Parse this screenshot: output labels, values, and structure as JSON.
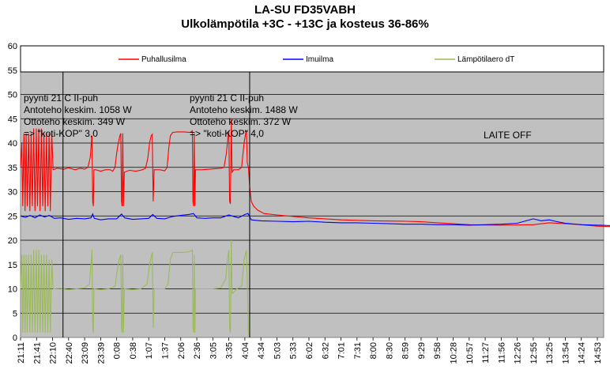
{
  "chart_data": {
    "type": "line",
    "title": "LA-SU FD35VABH",
    "subtitle": "Ulkolämpötila +3C - +13C ja kosteus 36-86%",
    "ylim": [
      0,
      60
    ],
    "yticks": [
      0,
      5,
      10,
      15,
      20,
      25,
      30,
      35,
      40,
      45,
      50,
      55,
      60
    ],
    "grid": true,
    "legend_position": "top",
    "x_labels": [
      "21:11",
      "21:41",
      "22:10",
      "22:40",
      "23:09",
      "23:39",
      "0:08",
      "0:38",
      "1:07",
      "1:37",
      "2:06",
      "2:36",
      "3:05",
      "3:35",
      "4:04",
      "4:34",
      "5:03",
      "5:33",
      "6:02",
      "6:32",
      "7:01",
      "7:31",
      "8:00",
      "8:30",
      "8:59",
      "9:29",
      "9:58",
      "10:28",
      "10:57",
      "11:27",
      "11:56",
      "12:26",
      "12:55",
      "13:25",
      "13:54",
      "14:24",
      "14:53"
    ],
    "series": [
      {
        "name": "Puhallusilma",
        "color": "#ff0000",
        "points": [
          [
            0,
            35
          ],
          [
            0.08,
            40
          ],
          [
            0.14,
            27
          ],
          [
            0.21,
            42
          ],
          [
            0.28,
            26
          ],
          [
            0.35,
            42
          ],
          [
            0.42,
            27
          ],
          [
            0.5,
            42
          ],
          [
            0.58,
            26
          ],
          [
            0.66,
            42
          ],
          [
            0.74,
            27
          ],
          [
            0.82,
            43
          ],
          [
            0.9,
            26
          ],
          [
            0.98,
            43
          ],
          [
            1.06,
            27
          ],
          [
            1.14,
            43
          ],
          [
            1.22,
            26
          ],
          [
            1.3,
            43
          ],
          [
            1.38,
            27
          ],
          [
            1.46,
            42
          ],
          [
            1.54,
            26
          ],
          [
            1.62,
            42
          ],
          [
            1.7,
            27
          ],
          [
            1.78,
            42
          ],
          [
            1.86,
            26
          ],
          [
            1.95,
            42
          ],
          [
            2.03,
            34.5
          ],
          [
            2.3,
            34.8
          ],
          [
            2.7,
            34.6
          ],
          [
            3.0,
            34.9
          ],
          [
            3.4,
            34.5
          ],
          [
            3.75,
            34.8
          ],
          [
            4.0,
            34.6
          ],
          [
            4.2,
            35
          ],
          [
            4.35,
            37
          ],
          [
            4.42,
            40
          ],
          [
            4.46,
            41.5
          ],
          [
            4.5,
            28
          ],
          [
            4.54,
            27
          ],
          [
            4.58,
            34.5
          ],
          [
            4.7,
            34.5
          ],
          [
            5.0,
            34.2
          ],
          [
            5.3,
            34.5
          ],
          [
            5.6,
            34.5
          ],
          [
            5.75,
            34.2
          ],
          [
            5.9,
            35
          ],
          [
            6.0,
            38
          ],
          [
            6.1,
            40
          ],
          [
            6.2,
            41.5
          ],
          [
            6.26,
            42
          ],
          [
            6.3,
            28
          ],
          [
            6.34,
            27
          ],
          [
            6.38,
            42
          ],
          [
            6.42,
            27
          ],
          [
            6.48,
            34
          ],
          [
            6.8,
            34.4
          ],
          [
            7.2,
            34.2
          ],
          [
            7.6,
            34.5
          ],
          [
            7.8,
            34.8
          ],
          [
            7.95,
            37
          ],
          [
            8.05,
            40
          ],
          [
            8.15,
            41.5
          ],
          [
            8.22,
            41.8
          ],
          [
            8.28,
            28
          ],
          [
            8.34,
            34.5
          ],
          [
            8.7,
            34.5
          ],
          [
            9.0,
            34.3
          ],
          [
            9.15,
            35
          ],
          [
            9.25,
            39
          ],
          [
            9.35,
            41.5
          ],
          [
            9.5,
            42.2
          ],
          [
            9.8,
            42.3
          ],
          [
            10.2,
            42.3
          ],
          [
            10.6,
            42.2
          ],
          [
            10.72,
            42.5
          ],
          [
            10.76,
            28
          ],
          [
            10.8,
            27
          ],
          [
            10.84,
            42
          ],
          [
            10.88,
            27
          ],
          [
            10.92,
            34.5
          ],
          [
            11.3,
            34.5
          ],
          [
            11.7,
            34.6
          ],
          [
            12.1,
            34.7
          ],
          [
            12.5,
            34.8
          ],
          [
            12.7,
            35
          ],
          [
            12.85,
            38
          ],
          [
            12.95,
            41.5
          ],
          [
            13.0,
            42.5
          ],
          [
            13.05,
            28
          ],
          [
            13.1,
            27.5
          ],
          [
            13.15,
            45
          ],
          [
            13.2,
            34
          ],
          [
            13.3,
            34.5
          ],
          [
            13.6,
            34.5
          ],
          [
            13.8,
            35
          ],
          [
            13.95,
            40
          ],
          [
            14.05,
            42
          ],
          [
            14.1,
            42.5
          ],
          [
            14.15,
            36
          ],
          [
            14.22,
            35
          ],
          [
            14.3,
            31
          ],
          [
            14.4,
            28
          ],
          [
            14.55,
            27
          ],
          [
            14.8,
            26.2
          ],
          [
            15.2,
            25.5
          ],
          [
            16,
            25.2
          ],
          [
            18,
            24.6
          ],
          [
            20,
            24.2
          ],
          [
            22,
            24
          ],
          [
            24,
            23.9
          ],
          [
            25,
            23.8
          ],
          [
            26,
            23.6
          ],
          [
            27,
            23.4
          ],
          [
            28,
            23.2
          ],
          [
            30,
            23.1
          ],
          [
            32,
            23.2
          ],
          [
            33,
            23.6
          ],
          [
            34,
            23.4
          ],
          [
            35,
            23.2
          ],
          [
            36,
            22.9
          ],
          [
            37,
            22.8
          ]
        ]
      },
      {
        "name": "Imuilma",
        "color": "#0000ff",
        "points": [
          [
            0,
            25
          ],
          [
            0.3,
            24.7
          ],
          [
            0.6,
            25.1
          ],
          [
            0.9,
            24.6
          ],
          [
            1.2,
            25.2
          ],
          [
            1.5,
            24.8
          ],
          [
            1.8,
            25.1
          ],
          [
            2.1,
            24.5
          ],
          [
            2.5,
            24.6
          ],
          [
            3,
            24.3
          ],
          [
            3.5,
            24.5
          ],
          [
            4,
            24.4
          ],
          [
            4.4,
            24.6
          ],
          [
            4.5,
            25.4
          ],
          [
            4.6,
            24.5
          ],
          [
            5,
            24.2
          ],
          [
            5.5,
            24.4
          ],
          [
            6,
            24.4
          ],
          [
            6.3,
            25.4
          ],
          [
            6.5,
            24.6
          ],
          [
            7,
            24.3
          ],
          [
            7.5,
            24.4
          ],
          [
            8,
            24.5
          ],
          [
            8.25,
            25.3
          ],
          [
            8.5,
            24.5
          ],
          [
            9,
            24.4
          ],
          [
            9.5,
            24.9
          ],
          [
            10,
            25.1
          ],
          [
            10.5,
            25.3
          ],
          [
            10.8,
            25.5
          ],
          [
            11,
            24.6
          ],
          [
            11.5,
            24.5
          ],
          [
            12,
            24.6
          ],
          [
            12.5,
            24.6
          ],
          [
            13,
            25.2
          ],
          [
            13.2,
            25
          ],
          [
            13.6,
            24.6
          ],
          [
            14,
            25.3
          ],
          [
            14.2,
            25.5
          ],
          [
            14.4,
            24.2
          ],
          [
            15,
            24
          ],
          [
            16,
            23.9
          ],
          [
            17,
            23.8
          ],
          [
            18,
            23.9
          ],
          [
            19,
            23.7
          ],
          [
            20,
            23.6
          ],
          [
            21,
            23.6
          ],
          [
            22,
            23.5
          ],
          [
            23,
            23.4
          ],
          [
            24,
            23.3
          ],
          [
            25,
            23.3
          ],
          [
            26,
            23.2
          ],
          [
            27,
            23.2
          ],
          [
            28,
            23.1
          ],
          [
            29,
            23.2
          ],
          [
            30,
            23.3
          ],
          [
            31,
            23.5
          ],
          [
            32,
            24.4
          ],
          [
            32.5,
            24
          ],
          [
            33,
            24.2
          ],
          [
            33.5,
            23.8
          ],
          [
            34,
            23.5
          ],
          [
            35,
            23.2
          ],
          [
            36,
            23.1
          ],
          [
            37,
            23
          ]
        ]
      },
      {
        "name": "Lämpötilaero dT",
        "color": "#9bbb59",
        "points": [
          [
            0,
            10
          ],
          [
            0.08,
            17
          ],
          [
            0.14,
            1
          ],
          [
            0.21,
            17
          ],
          [
            0.28,
            1
          ],
          [
            0.35,
            17
          ],
          [
            0.42,
            1
          ],
          [
            0.5,
            17
          ],
          [
            0.58,
            1
          ],
          [
            0.66,
            17
          ],
          [
            0.74,
            1
          ],
          [
            0.82,
            18
          ],
          [
            0.9,
            1
          ],
          [
            0.98,
            18
          ],
          [
            1.06,
            1
          ],
          [
            1.14,
            18
          ],
          [
            1.22,
            1
          ],
          [
            1.3,
            17
          ],
          [
            1.38,
            1
          ],
          [
            1.46,
            17
          ],
          [
            1.54,
            1
          ],
          [
            1.62,
            17
          ],
          [
            1.7,
            1
          ],
          [
            1.78,
            16
          ],
          [
            1.86,
            1
          ],
          [
            1.95,
            16
          ],
          [
            2.03,
            10
          ],
          [
            2.5,
            10.1
          ],
          [
            3,
            9.8
          ],
          [
            3.5,
            10
          ],
          [
            4,
            10.2
          ],
          [
            4.3,
            11
          ],
          [
            4.42,
            16
          ],
          [
            4.46,
            18
          ],
          [
            4.5,
            2
          ],
          [
            4.54,
            1
          ],
          [
            4.58,
            10
          ],
          [
            5,
            9.8
          ],
          [
            5.5,
            10
          ],
          [
            5.9,
            10.5
          ],
          [
            6.0,
            13
          ],
          [
            6.15,
            16
          ],
          [
            6.26,
            17
          ],
          [
            6.3,
            2
          ],
          [
            6.34,
            1
          ],
          [
            6.38,
            17
          ],
          [
            6.42,
            1
          ],
          [
            6.48,
            10
          ],
          [
            7,
            9.8
          ],
          [
            7.5,
            10
          ],
          [
            7.9,
            11
          ],
          [
            8.05,
            15
          ],
          [
            8.22,
            17.5
          ],
          [
            8.28,
            2
          ],
          [
            8.34,
            10
          ],
          [
            9,
            10
          ],
          [
            9.2,
            11
          ],
          [
            9.35,
            16
          ],
          [
            9.5,
            17.5
          ],
          [
            10,
            17.5
          ],
          [
            10.5,
            17.6
          ],
          [
            10.72,
            18
          ],
          [
            10.76,
            2
          ],
          [
            10.8,
            1
          ],
          [
            10.84,
            17
          ],
          [
            10.88,
            1
          ],
          [
            10.92,
            10
          ],
          [
            11.5,
            10
          ],
          [
            12,
            10
          ],
          [
            12.5,
            10.2
          ],
          [
            12.8,
            12
          ],
          [
            12.95,
            17
          ],
          [
            13.0,
            18
          ],
          [
            13.05,
            2
          ],
          [
            13.1,
            1
          ],
          [
            13.15,
            20
          ],
          [
            13.2,
            9
          ],
          [
            13.5,
            10
          ],
          [
            13.8,
            10.5
          ],
          [
            13.95,
            16
          ],
          [
            14.1,
            18
          ],
          [
            14.15,
            12
          ],
          [
            14.22,
            1
          ],
          [
            14.3,
            0
          ]
        ]
      }
    ],
    "annotations": [
      {
        "lines": [
          "pyynti 21 C II-puh",
          "Antoteho keskim. 1058 W",
          "Ottoteho keskim. 349 W",
          "=> \"koti-KOP\" 3,0"
        ]
      },
      {
        "lines": [
          "pyynti 21 C II-puh",
          "Antoteho keskim. 1488 W",
          "Ottoteho keskim. 372 W",
          "=> \"koti-KOP\" 4,0"
        ]
      },
      {
        "lines": [
          "LAITE OFF"
        ]
      }
    ],
    "markers_at": [
      2.65,
      14.3
    ]
  }
}
